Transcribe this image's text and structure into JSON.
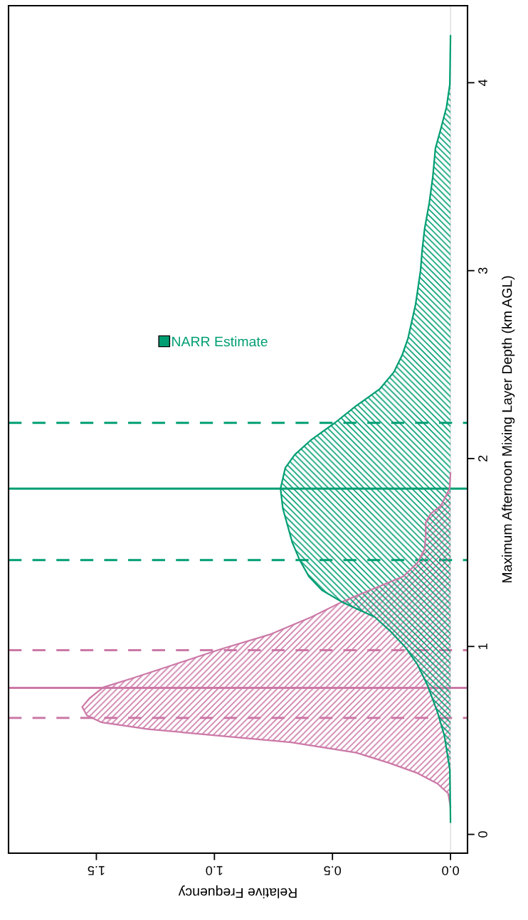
{
  "chart_data": {
    "type": "area",
    "orientation": "horizontal",
    "xlabel": "Relative Frequency",
    "ylabel": "Maximum Afternoon Mixing Layer Depth (km AGL)",
    "xlim": [
      1.872,
      -0.072
    ],
    "xticks": [
      {
        "value": 0,
        "label": "0.0"
      },
      {
        "value": 0.5,
        "label": "0.5"
      },
      {
        "value": 1.0,
        "label": "1.0"
      },
      {
        "value": 1.5,
        "label": "1.5"
      }
    ],
    "ylim": [
      -0.1,
      4.41
    ],
    "yticks": [
      0,
      1,
      2,
      3,
      4
    ],
    "grid": false,
    "legend": "top left",
    "series": [
      {
        "color": "#cc79a7",
        "x": [
          0.146,
          0.218,
          0.27,
          0.326,
          0.38,
          0.435,
          0.49,
          0.525,
          0.56,
          0.597,
          0.633,
          0.678,
          0.723,
          0.783,
          0.83,
          0.9,
          0.983,
          1.066,
          1.156,
          1.237,
          1.3,
          1.373,
          1.445,
          1.517,
          1.589,
          1.66,
          1.706,
          1.75,
          1.84,
          1.923
        ],
        "values": [
          0,
          0.01,
          0.055,
          0.14,
          0.26,
          0.4,
          0.675,
          0.98,
          1.28,
          1.48,
          1.54,
          1.56,
          1.53,
          1.47,
          1.35,
          1.18,
          0.98,
          0.76,
          0.59,
          0.46,
          0.34,
          0.2,
          0.14,
          0.11,
          0.105,
          0.105,
          0.084,
          0.04,
          0.004,
          0
        ]
      },
      {
        "name": "NARR Estimate",
        "color": "#009e73",
        "x": [
          0.065,
          0.345,
          0.525,
          0.65,
          0.795,
          0.904,
          0.994,
          1.084,
          1.156,
          1.237,
          1.3,
          1.373,
          1.463,
          1.553,
          1.643,
          1.733,
          1.84,
          1.95,
          2.02,
          2.1,
          2.19,
          2.28,
          2.37,
          2.46,
          2.55,
          2.64,
          2.82,
          3.0,
          3.11,
          3.22,
          3.36,
          3.5,
          3.65,
          3.76,
          3.87,
          3.99,
          4.25
        ],
        "values": [
          0,
          0.003,
          0.026,
          0.055,
          0.098,
          0.14,
          0.19,
          0.257,
          0.32,
          0.46,
          0.545,
          0.6,
          0.64,
          0.67,
          0.69,
          0.71,
          0.72,
          0.7,
          0.66,
          0.59,
          0.49,
          0.4,
          0.3,
          0.24,
          0.205,
          0.18,
          0.148,
          0.127,
          0.12,
          0.11,
          0.09,
          0.075,
          0.064,
          0.04,
          0.017,
          0.003,
          0
        ]
      }
    ],
    "ref_lines": [
      {
        "axis": "x",
        "value": 0,
        "color": "#dddddd",
        "line_style": "solid"
      },
      {
        "axis": "y",
        "value": 0.78,
        "color": "#cc79a7",
        "line_style": "solid"
      },
      {
        "axis": "y",
        "value": 0.62,
        "color": "#cc79a7",
        "line_style": "dashed"
      },
      {
        "axis": "y",
        "value": 0.98,
        "color": "#cc79a7",
        "line_style": "dashed"
      },
      {
        "axis": "y",
        "value": 1.84,
        "color": "#009e73",
        "line_style": "solid"
      },
      {
        "axis": "y",
        "value": 1.46,
        "color": "#009e73",
        "line_style": "dashed"
      },
      {
        "axis": "y",
        "value": 2.19,
        "color": "#009e73",
        "line_style": "dashed"
      }
    ]
  }
}
